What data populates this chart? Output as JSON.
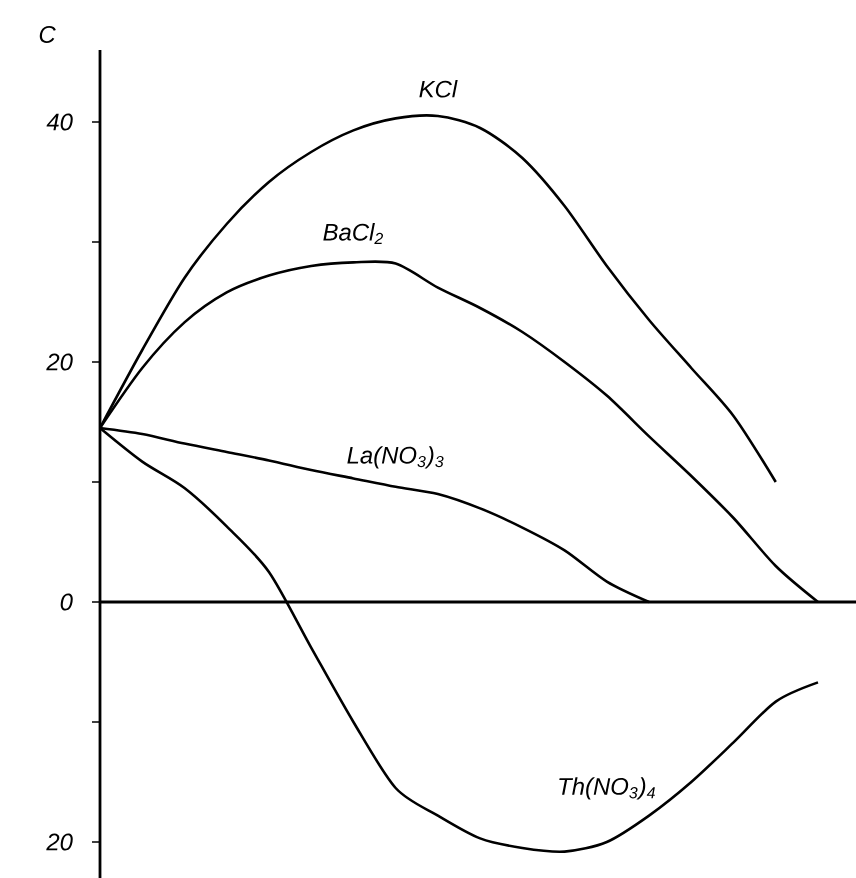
{
  "chart_data": {
    "type": "line",
    "ylabel": "C",
    "categories": [
      null,
      null,
      null,
      null,
      null,
      null,
      null,
      null,
      null,
      null,
      null,
      null,
      null,
      null,
      null,
      null,
      null,
      null
    ],
    "series": [
      {
        "name": "KCl",
        "color": "#000000",
        "values": [
          14.5,
          21,
          27,
          31.5,
          35,
          37.5,
          39.3,
          40.3,
          40.5,
          39.5,
          37,
          33,
          28,
          23.5,
          19.5,
          15.5,
          10,
          null
        ]
      },
      {
        "name": "BaCl$_{2}$",
        "color": "#000000",
        "values": [
          14.5,
          19.5,
          23.3,
          25.8,
          27.2,
          28,
          28.3,
          28.2,
          26.2,
          24.5,
          22.5,
          20,
          17.2,
          13.8,
          10.5,
          7,
          3,
          0
        ]
      },
      {
        "name": "La(NO$_{3}$)$_{3}$",
        "color": "#000000",
        "values": [
          14.5,
          14,
          13.2,
          12.5,
          11.8,
          11,
          10.3,
          9.6,
          9,
          7.8,
          6.2,
          4.3,
          1.7,
          0,
          null,
          null,
          null,
          null
        ]
      },
      {
        "name": "Th(NO$_{3}$)$_{4}$",
        "color": "#000000",
        "values": [
          14.5,
          11.7,
          9.5,
          6.3,
          2.5,
          -3.8,
          -10,
          -15.5,
          -17.8,
          -19.7,
          -20.5,
          -20.8,
          -20,
          -17.8,
          -15,
          -11.7,
          -8.3,
          -6.7
        ]
      }
    ],
    "ylim": [
      -23,
      46
    ],
    "yticks": [
      {
        "value": -20,
        "label": "20"
      },
      {
        "value": -10,
        "label": null
      },
      0,
      {
        "value": 10,
        "label": null
      },
      20,
      {
        "value": 30,
        "label": null
      },
      40
    ],
    "tick_labels": "y",
    "legend": false,
    "marker": "none",
    "line_style": "solid"
  }
}
